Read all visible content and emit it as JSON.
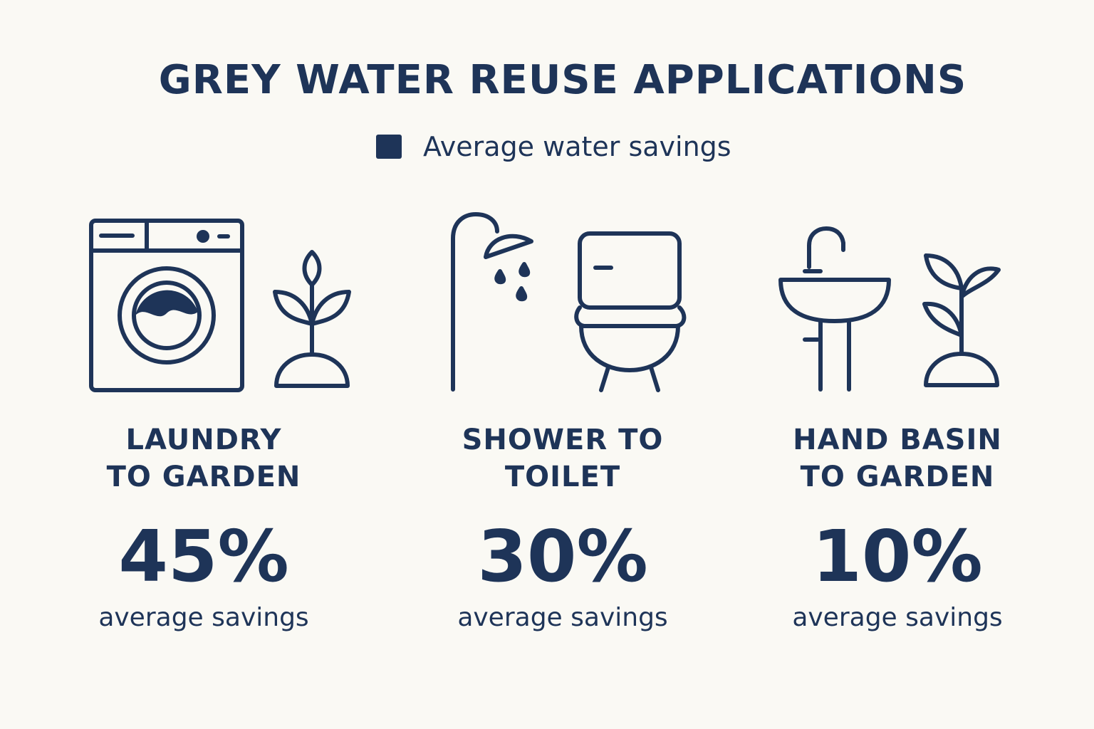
{
  "title": "GREY WATER REUSE APPLICATIONS",
  "legend": {
    "label": "Average water savings",
    "color": "#1e3458"
  },
  "items": [
    {
      "label_line1": "LAUNDRY",
      "label_line2": "TO GARDEN",
      "value_text": "45%",
      "value": 45,
      "sub": "average savings",
      "icons": [
        "washing-machine-icon",
        "plant-icon"
      ]
    },
    {
      "label_line1": "SHOWER TO",
      "label_line2": "TOILET",
      "value_text": "30%",
      "value": 30,
      "sub": "average savings",
      "icons": [
        "shower-icon",
        "toilet-icon"
      ]
    },
    {
      "label_line1": "HAND BASIN",
      "label_line2": "TO GARDEN",
      "value_text": "10%",
      "value": 10,
      "sub": "average savings",
      "icons": [
        "sink-icon",
        "plant-icon"
      ]
    }
  ]
}
